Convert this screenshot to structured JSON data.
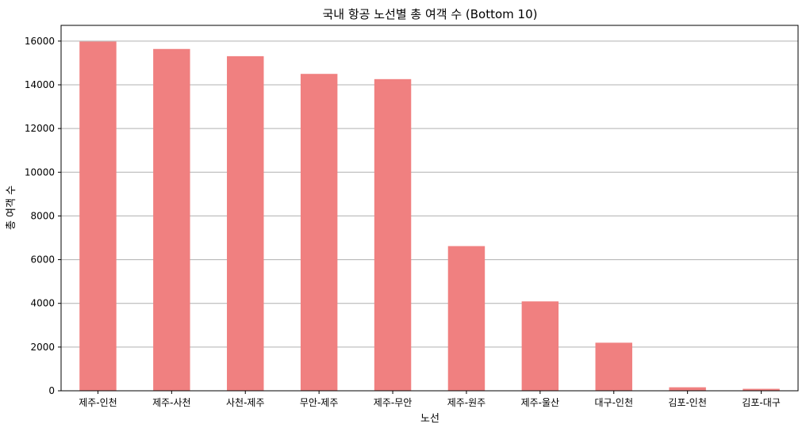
{
  "chart_data": {
    "type": "bar",
    "title": "국내 항공 노선별 총 여객 수 (Bottom 10)",
    "xlabel": "노선",
    "ylabel": "총 여객 수",
    "categories": [
      "제주-인천",
      "제주-사천",
      "사천-제주",
      "무안-제주",
      "제주-무안",
      "제주-원주",
      "제주-울산",
      "대구-인천",
      "김포-인천",
      "김포-대구"
    ],
    "values": [
      15980,
      15640,
      15310,
      14500,
      14260,
      6620,
      4090,
      2200,
      160,
      90
    ],
    "ylim": [
      0,
      16720
    ],
    "yticks": [
      0,
      2000,
      4000,
      6000,
      8000,
      10000,
      12000,
      14000,
      16000
    ],
    "grid": "y",
    "bar_color": "#f08080"
  }
}
